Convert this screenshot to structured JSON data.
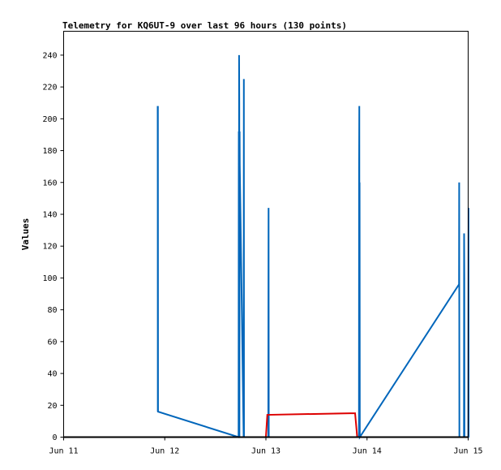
{
  "chart_data": {
    "type": "line",
    "title": "Telemetry for KQ6UT-9 over last 96 hours (130 points)",
    "xlabel": "",
    "ylabel": "Values",
    "xlim": [
      "2022-06-11T00:00",
      "2022-06-15T00:00"
    ],
    "ylim": [
      0,
      255
    ],
    "x_ticks": [
      "Jun 11",
      "Jun 12",
      "Jun 13",
      "Jun 14",
      "Jun 15"
    ],
    "y_ticks": [
      0,
      20,
      40,
      60,
      80,
      100,
      120,
      140,
      160,
      180,
      200,
      220,
      240
    ],
    "grid": false,
    "legend": "none",
    "colors": {
      "series_1": "#0066bb",
      "series_2": "#dd0000",
      "series_3": "#000000",
      "frame": "#000000"
    },
    "series": [
      {
        "x": [
          "2022-06-11T22:19",
          "2022-06-11T22:20",
          "2022-06-11T22:21",
          "2022-06-11T22:22",
          "2022-06-11T22:24",
          "2022-06-12T17:31",
          "2022-06-12T17:34",
          "2022-06-12T17:36",
          "2022-06-12T17:38",
          "2022-06-12T17:41",
          "2022-06-12T17:43",
          "2022-06-12T17:46",
          "2022-06-12T17:48",
          "2022-06-12T18:43",
          "2022-06-12T18:46",
          "2022-06-12T18:48",
          "2022-06-13T00:34",
          "2022-06-13T00:36",
          "2022-06-13T00:38",
          "2022-06-13T00:41",
          "2022-06-13T02:36",
          "2022-06-13T02:38",
          "2022-06-13T02:41",
          "2022-06-13T02:43",
          "2022-06-13T02:46",
          "2022-06-13T02:48",
          "2022-06-13T22:05",
          "2022-06-13T22:07",
          "2022-06-13T22:10",
          "2022-06-13T22:12",
          "2022-06-13T22:14",
          "2022-06-13T22:17",
          "2022-06-14T21:50",
          "2022-06-14T21:52",
          "2022-06-14T21:55",
          "2022-06-14T23:00",
          "2022-06-14T23:02",
          "2022-06-14T23:05",
          "2022-06-14T23:07",
          "2022-06-14T23:10",
          "2022-06-15T00:02",
          "2022-06-15T00:05",
          "2022-06-15T00:07",
          "2022-06-15T00:10",
          "2022-06-15T00:12"
        ],
        "values": [
          208,
          160,
          16,
          208,
          16,
          0,
          192,
          0,
          240,
          210,
          0,
          192,
          171,
          0,
          225,
          0,
          0,
          80,
          144,
          0,
          0,
          0,
          0,
          0,
          0,
          0,
          0,
          167,
          208,
          0,
          160,
          0,
          96,
          160,
          0,
          0,
          128,
          100,
          0,
          0,
          0,
          144,
          0,
          0,
          0
        ]
      },
      {
        "x": [
          "2022-06-12T22:00",
          "2022-06-13T00:00",
          "2022-06-13T00:20",
          "2022-06-13T20:00",
          "2022-06-13T21:10",
          "2022-06-13T21:40",
          "2022-06-13T22:10"
        ],
        "values": [
          0,
          0,
          14,
          15,
          15,
          0,
          0
        ]
      },
      {
        "x": [
          "2022-06-11T00:00",
          "2022-06-15T00:00"
        ],
        "values": [
          0,
          0
        ]
      }
    ]
  }
}
